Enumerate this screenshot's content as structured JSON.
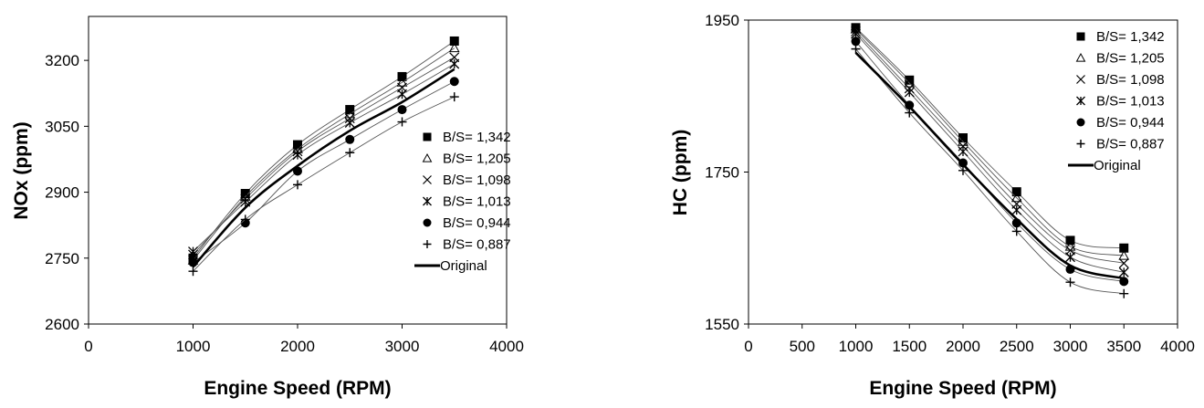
{
  "chart_data": [
    {
      "type": "scatter",
      "title": "",
      "xlabel": "Engine Speed (RPM)",
      "ylabel": "NOx (ppm)",
      "xlim": [
        0,
        4000
      ],
      "ylim": [
        2600,
        3300
      ],
      "xticks": [
        "0",
        "1000",
        "2000",
        "3000",
        "4000"
      ],
      "yticks": [
        "2600",
        "2750",
        "2900",
        "3050",
        "3200"
      ],
      "grid": false,
      "legend_position": "right",
      "x": [
        1000,
        1500,
        2000,
        2500,
        3000,
        3500
      ],
      "series": [
        {
          "name": "B/S= 1,342",
          "marker": "square",
          "values": [
            2750,
            2897,
            3008,
            3088,
            3163,
            3244
          ]
        },
        {
          "name": "B/S= 1,205",
          "marker": "triangle",
          "values": [
            2745,
            2890,
            2998,
            3078,
            3150,
            3228
          ]
        },
        {
          "name": "B/S= 1,098",
          "marker": "x",
          "values": [
            2758,
            2885,
            2993,
            3068,
            3138,
            3207
          ]
        },
        {
          "name": "B/S= 1,013",
          "marker": "star",
          "values": [
            2765,
            2878,
            2985,
            3058,
            3123,
            3192
          ]
        },
        {
          "name": "B/S= 0,944",
          "marker": "circle",
          "values": [
            2740,
            2830,
            2948,
            3020,
            3088,
            3152
          ]
        },
        {
          "name": "B/S= 0,887",
          "marker": "plus",
          "values": [
            2720,
            2838,
            2917,
            2990,
            3060,
            3117
          ]
        },
        {
          "name": "Original",
          "marker": "line",
          "values": [
            2730,
            2865,
            2960,
            3040,
            3105,
            3180
          ]
        }
      ]
    },
    {
      "type": "scatter",
      "title": "",
      "xlabel": "Engine Speed (RPM)",
      "ylabel": "HC (ppm)",
      "xlim": [
        0,
        4000
      ],
      "ylim": [
        1550,
        1950
      ],
      "xticks": [
        "0",
        "500",
        "1000",
        "1500",
        "2000",
        "2500",
        "3000",
        "3500",
        "4000"
      ],
      "yticks": [
        "1550",
        "1750",
        "1950"
      ],
      "grid": false,
      "legend_position": "top-right",
      "x": [
        1000,
        1500,
        2000,
        2500,
        3000,
        3500
      ],
      "series": [
        {
          "name": "B/S= 1,342",
          "marker": "square",
          "values": [
            1940,
            1871,
            1795,
            1724,
            1660,
            1650
          ]
        },
        {
          "name": "B/S= 1,205",
          "marker": "triangle",
          "values": [
            1938,
            1867,
            1790,
            1716,
            1652,
            1640
          ]
        },
        {
          "name": "B/S= 1,098",
          "marker": "x",
          "values": [
            1935,
            1860,
            1784,
            1708,
            1647,
            1630
          ]
        },
        {
          "name": "B/S= 1,013",
          "marker": "star",
          "values": [
            1932,
            1855,
            1777,
            1700,
            1638,
            1618
          ]
        },
        {
          "name": "B/S= 0,944",
          "marker": "circle",
          "values": [
            1922,
            1838,
            1762,
            1683,
            1622,
            1606
          ]
        },
        {
          "name": "B/S= 0,887",
          "marker": "plus",
          "values": [
            1912,
            1828,
            1752,
            1672,
            1605,
            1590
          ]
        },
        {
          "name": "Original",
          "marker": "line",
          "values": [
            1907,
            1836,
            1760,
            1688,
            1627,
            1610
          ]
        }
      ]
    }
  ]
}
